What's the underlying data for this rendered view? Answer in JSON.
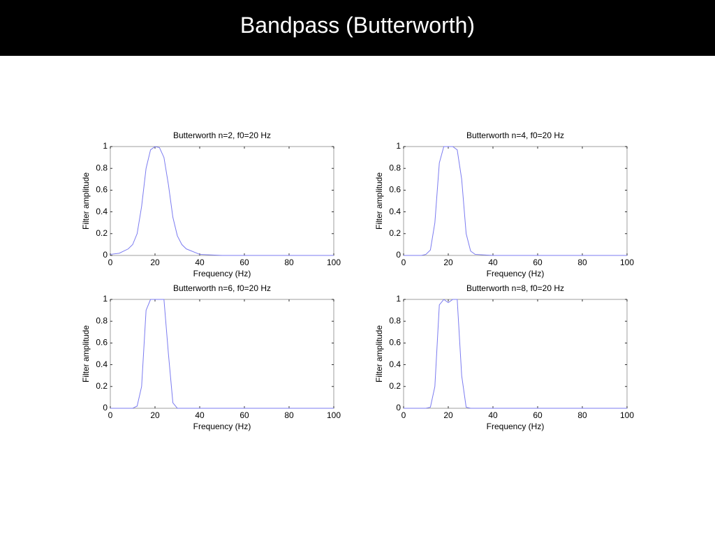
{
  "title": "Bandpass  (Butterworth)",
  "chart_data": [
    {
      "type": "line",
      "title": "Butterworth n=2, f0=20 Hz",
      "xlabel": "Frequency (Hz)",
      "ylabel": "Filter amplitude",
      "x": [
        0,
        4,
        8,
        10,
        12,
        14,
        16,
        18,
        20,
        22,
        24,
        26,
        28,
        30,
        32,
        34,
        40,
        50,
        100
      ],
      "values": [
        0.01,
        0.02,
        0.06,
        0.1,
        0.2,
        0.45,
        0.8,
        0.97,
        1,
        0.99,
        0.9,
        0.65,
        0.35,
        0.18,
        0.1,
        0.06,
        0.01,
        0,
        0
      ],
      "color": "#7b7bf0",
      "xlim": [
        0,
        100
      ],
      "ylim": [
        0,
        1
      ],
      "xticks": [
        0,
        20,
        40,
        60,
        80,
        100
      ],
      "yticks": [
        0,
        0.2,
        0.4,
        0.6,
        0.8,
        1
      ]
    },
    {
      "type": "line",
      "title": "Butterworth n=4, f0=20 Hz",
      "xlabel": "Frequency (Hz)",
      "ylabel": "Filter amplitude",
      "x": [
        0,
        8,
        10,
        12,
        14,
        16,
        18,
        20,
        22,
        24,
        26,
        28,
        30,
        32,
        40,
        100
      ],
      "values": [
        0,
        0,
        0.01,
        0.05,
        0.3,
        0.85,
        1,
        1,
        1,
        0.97,
        0.7,
        0.2,
        0.04,
        0.01,
        0,
        0
      ],
      "color": "#7b7bf0",
      "xlim": [
        0,
        100
      ],
      "ylim": [
        0,
        1
      ],
      "xticks": [
        0,
        20,
        40,
        60,
        80,
        100
      ],
      "yticks": [
        0,
        0.2,
        0.4,
        0.6,
        0.8,
        1
      ]
    },
    {
      "type": "line",
      "title": "Butterworth n=6, f0=20 Hz",
      "xlabel": "Frequency (Hz)",
      "ylabel": "Filter amplitude",
      "x": [
        0,
        10,
        12,
        14,
        16,
        18,
        20,
        22,
        24,
        26,
        28,
        30,
        100
      ],
      "values": [
        0,
        0,
        0.02,
        0.2,
        0.9,
        1,
        1,
        1,
        1,
        0.5,
        0.05,
        0,
        0
      ],
      "color": "#7b7bf0",
      "xlim": [
        0,
        100
      ],
      "ylim": [
        0,
        1
      ],
      "xticks": [
        0,
        20,
        40,
        60,
        80,
        100
      ],
      "yticks": [
        0,
        0.2,
        0.4,
        0.6,
        0.8,
        1
      ]
    },
    {
      "type": "line",
      "title": "Butterworth n=8, f0=20 Hz",
      "xlabel": "Frequency (Hz)",
      "ylabel": "Filter amplitude",
      "x": [
        0,
        10,
        12,
        14,
        16,
        18,
        20,
        22,
        24,
        26,
        28,
        30,
        100
      ],
      "values": [
        0,
        0,
        0.01,
        0.2,
        0.95,
        1,
        0.97,
        1,
        1,
        0.3,
        0.01,
        0,
        0
      ],
      "color": "#7b7bf0",
      "xlim": [
        0,
        100
      ],
      "ylim": [
        0,
        1
      ],
      "xticks": [
        0,
        20,
        40,
        60,
        80,
        100
      ],
      "yticks": [
        0,
        0.2,
        0.4,
        0.6,
        0.8,
        1
      ]
    }
  ]
}
